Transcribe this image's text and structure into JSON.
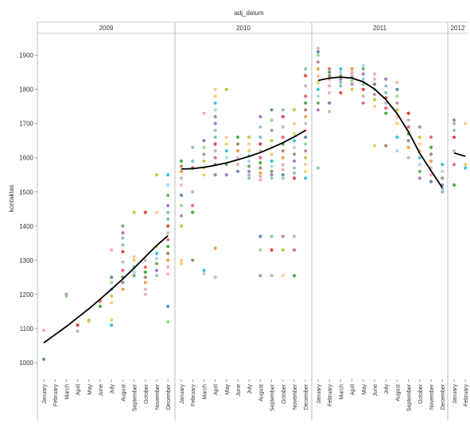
{
  "chart_data": {
    "type": "scatter",
    "title": "",
    "column_header": "adj_datum",
    "ylabel": "kontaktas",
    "ylim": [
      985,
      1935
    ],
    "yticks": [
      1000,
      1100,
      1200,
      1300,
      1400,
      1500,
      1600,
      1700,
      1800,
      1900
    ],
    "grid": false,
    "legend": "none",
    "panels": [
      {
        "year": "2009",
        "months": [
          "January",
          "February",
          "March",
          "April",
          "May",
          "June",
          "July",
          "August",
          "September",
          "October",
          "November",
          "December"
        ],
        "trend": [
          1058,
          1082,
          1106,
          1132,
          1158,
          1186,
          1215,
          1245,
          1277,
          1310,
          1343,
          1372
        ],
        "clusters": [
          [
            1010,
            1095
          ],
          [],
          [
            1200,
            1195
          ],
          [
            1092,
            1110
          ],
          [
            1120,
            1125
          ],
          [
            1165,
            1180
          ],
          [
            1110,
            1125,
            1175,
            1195,
            1215,
            1235,
            1250,
            1330
          ],
          [
            1215,
            1235,
            1250,
            1270,
            1295,
            1325,
            1345,
            1365,
            1380,
            1400
          ],
          [
            1255,
            1265,
            1280,
            1300,
            1310,
            1440
          ],
          [
            1200,
            1215,
            1235,
            1250,
            1265,
            1280,
            1300,
            1440
          ],
          [
            1255,
            1270,
            1290,
            1305,
            1320,
            1340,
            1440,
            1550
          ],
          [
            1120,
            1165,
            1260,
            1280,
            1300,
            1320,
            1340,
            1360,
            1380,
            1400,
            1420,
            1440,
            1460,
            1490,
            1520,
            1550
          ]
        ]
      },
      {
        "year": "2010",
        "months": [
          "January",
          "February",
          "March",
          "April",
          "May",
          "June",
          "July",
          "August",
          "September",
          "October",
          "November",
          "December"
        ],
        "trend": [
          1567,
          1568,
          1572,
          1578,
          1585,
          1594,
          1604,
          1615,
          1629,
          1644,
          1661,
          1680
        ],
        "clusters": [
          [
            1290,
            1300,
            1400,
            1430,
            1460,
            1490,
            1520,
            1540,
            1560,
            1575,
            1590
          ],
          [
            1300,
            1440,
            1460,
            1500,
            1570,
            1590,
            1630
          ],
          [
            1260,
            1270,
            1550,
            1570,
            1590,
            1610,
            1630,
            1650,
            1730
          ],
          [
            1250,
            1335,
            1550,
            1580,
            1600,
            1620,
            1640,
            1660,
            1680,
            1700,
            1720,
            1740,
            1760,
            1780,
            1800
          ],
          [
            1550,
            1580,
            1600,
            1620,
            1640,
            1660,
            1800
          ],
          [
            1560,
            1580,
            1600,
            1620,
            1640,
            1660
          ],
          [
            1540,
            1550,
            1560,
            1575,
            1590,
            1605,
            1620,
            1640,
            1660
          ],
          [
            1255,
            1330,
            1370,
            1535,
            1545,
            1555,
            1570,
            1585,
            1600,
            1620,
            1640,
            1660,
            1690,
            1720
          ],
          [
            1255,
            1330,
            1370,
            1540,
            1550,
            1560,
            1575,
            1590,
            1610,
            1630,
            1650,
            1680,
            1710,
            1740
          ],
          [
            1255,
            1330,
            1370,
            1540,
            1550,
            1565,
            1580,
            1600,
            1620,
            1640,
            1660,
            1690,
            1720,
            1740
          ],
          [
            1255,
            1330,
            1370,
            1540,
            1555,
            1570,
            1590,
            1610,
            1630,
            1650,
            1670,
            1700,
            1740
          ],
          [
            1540,
            1560,
            1580,
            1600,
            1620,
            1640,
            1660,
            1680,
            1700,
            1720,
            1740,
            1760,
            1780,
            1810,
            1840,
            1860
          ]
        ]
      },
      {
        "year": "2011",
        "months": [
          "January",
          "February",
          "March",
          "April",
          "May",
          "June",
          "July",
          "August",
          "September",
          "October",
          "November",
          "December"
        ],
        "trend": [
          1826,
          1833,
          1836,
          1833,
          1822,
          1801,
          1770,
          1729,
          1676,
          1613,
          1562,
          1512
        ],
        "clusters": [
          [
            1570,
            1740,
            1760,
            1780,
            1800,
            1820,
            1840,
            1860,
            1880,
            1900,
            1910,
            1920
          ],
          [
            1735,
            1760,
            1790,
            1810,
            1830,
            1840,
            1850,
            1860
          ],
          [
            1790,
            1810,
            1820,
            1830,
            1840,
            1850,
            1860
          ],
          [
            1800,
            1815,
            1825,
            1835,
            1845,
            1850,
            1860
          ],
          [
            1760,
            1780,
            1800,
            1815,
            1830,
            1845,
            1860,
            1870
          ],
          [
            1635,
            1750,
            1770,
            1785,
            1800,
            1815,
            1830,
            1845
          ],
          [
            1635,
            1730,
            1745,
            1760,
            1775,
            1790,
            1810,
            1830
          ],
          [
            1620,
            1660,
            1700,
            1720,
            1740,
            1760,
            1780,
            1800,
            1820
          ],
          [
            1600,
            1630,
            1650,
            1670,
            1690,
            1710,
            1730
          ],
          [
            1540,
            1560,
            1580,
            1600,
            1620,
            1640,
            1660,
            1690
          ],
          [
            1530,
            1550,
            1570,
            1590,
            1610,
            1630,
            1660
          ],
          [
            1500,
            1510,
            1520,
            1540,
            1560,
            1580
          ]
        ]
      },
      {
        "year": "2012",
        "months": [
          "January",
          "February"
        ],
        "trend": [
          1614,
          1604
        ],
        "clusters": [
          [
            1520,
            1580,
            1620,
            1660,
            1680,
            1700,
            1710
          ],
          [
            1570,
            1580,
            1700
          ]
        ]
      }
    ]
  }
}
